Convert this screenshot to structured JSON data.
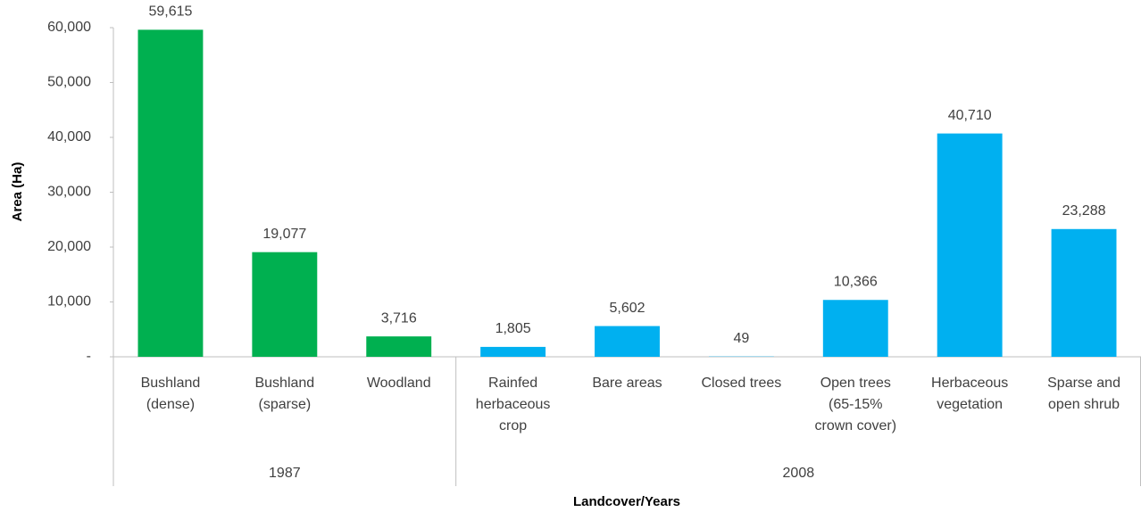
{
  "chart_data": {
    "type": "bar",
    "y_label": "Area (Ha)",
    "x_label": "Landcover/Years",
    "ylim": [
      0,
      60000
    ],
    "yticks": [
      {
        "value": 0,
        "label": "-"
      },
      {
        "value": 10000,
        "label": "10,000"
      },
      {
        "value": 20000,
        "label": "20,000"
      },
      {
        "value": 30000,
        "label": "30,000"
      },
      {
        "value": 40000,
        "label": "40,000"
      },
      {
        "value": 50000,
        "label": "50,000"
      },
      {
        "value": 60000,
        "label": "60,000"
      }
    ],
    "groups": [
      {
        "name": "1987",
        "color": "#00b050",
        "categories": [
          "Bushland\n(dense)",
          "Bushland\n(sparse)",
          "Woodland"
        ],
        "values": [
          59615,
          19077,
          3716
        ],
        "value_labels": [
          "59,615",
          "19,077",
          "3,716"
        ]
      },
      {
        "name": "2008",
        "color": "#00b0f0",
        "categories": [
          "Rainfed\nherbaceous\ncrop",
          "Bare areas",
          "Closed trees",
          "Open trees\n(65-15%\ncrown cover)",
          "Herbaceous\nvegetation",
          "Sparse and\nopen shrub"
        ],
        "values": [
          1805,
          5602,
          49,
          10366,
          40710,
          23288
        ],
        "value_labels": [
          "1,805",
          "5,602",
          "49",
          "10,366",
          "40,710",
          "23,288"
        ]
      }
    ]
  }
}
